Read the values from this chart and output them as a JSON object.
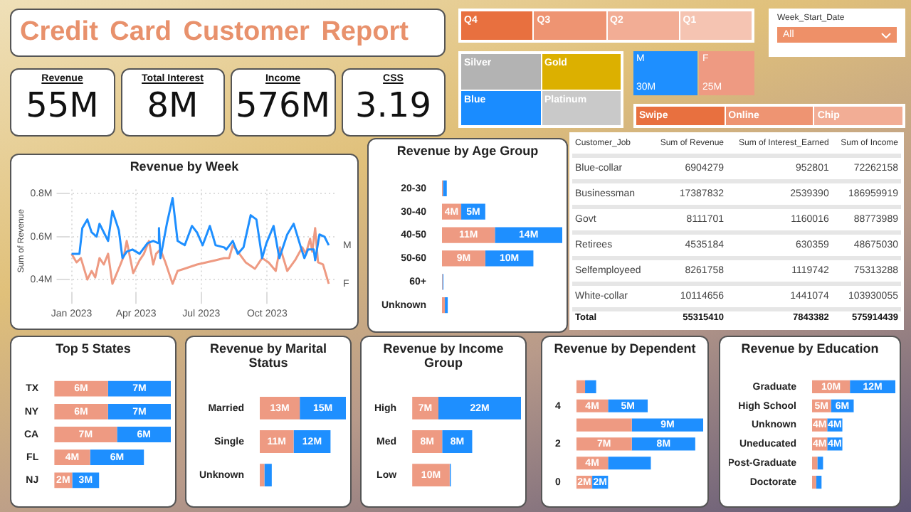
{
  "chart_data": [
    {
      "type": "other",
      "title": "Credit Card Customer Report"
    },
    {
      "type": "other",
      "categories": [
        "Q4",
        "Q3",
        "Q2",
        "Q1"
      ],
      "colors": [
        "#e8703f",
        "#ee9472",
        "#f2ad95",
        "#f5c4b2"
      ]
    },
    {
      "type": "other",
      "title": "Week_Start_Date",
      "annotations": [
        "All"
      ]
    },
    {
      "type": "other",
      "categories": [
        "Revenue",
        "Total Interest",
        "Income",
        "CSS"
      ],
      "value_labels": [
        "55M",
        "8M",
        "576M",
        "3.19"
      ]
    },
    {
      "type": "other",
      "categories": [
        "Silver",
        "Gold",
        "Blue",
        "Platinum"
      ],
      "colors": [
        "#b3b3b3",
        "#dcb000",
        "#1a8cff",
        "#c9c9c9"
      ]
    },
    {
      "type": "other",
      "categories": [
        "M",
        "F"
      ],
      "values": [
        30,
        25
      ],
      "value_labels": [
        "30M",
        "25M"
      ],
      "colors": [
        "#1e8fff",
        "#ee9a82"
      ]
    },
    {
      "type": "other",
      "categories": [
        "Swipe",
        "Online",
        "Chip"
      ],
      "colors": [
        "#e8703f",
        "#ee9472",
        "#f2ad95"
      ]
    },
    {
      "type": "line",
      "title": "Revenue by Week",
      "ylabel": "Sum of Revenue",
      "xlim": [
        "2022-12-27",
        "2024-01-05"
      ],
      "xticks": [
        {
          "value": "2023-01-01",
          "label": "Jan 2023"
        },
        {
          "value": "2023-04-01",
          "label": "Apr 2023"
        },
        {
          "value": "2023-07-01",
          "label": "Jul 2023"
        },
        {
          "value": "2023-10-01",
          "label": "Oct 2023"
        }
      ],
      "ylim": [
        0.34,
        0.82
      ],
      "yticks": [
        {
          "value": 0.4,
          "label": "0.4M"
        },
        {
          "value": 0.6,
          "label": "0.6M"
        },
        {
          "value": 0.8,
          "label": "0.8M"
        }
      ],
      "grid": true,
      "series": [
        {
          "name": "M",
          "color": "#1e8fff",
          "x": [
            "2023-01-01",
            "2023-01-12",
            "2023-01-16",
            "2023-01-23",
            "2023-01-29",
            "2023-02-05",
            "2023-02-09",
            "2023-02-15",
            "2023-02-21",
            "2023-02-27",
            "2023-03-08",
            "2023-03-13",
            "2023-03-19",
            "2023-03-27",
            "2023-04-06",
            "2023-04-17",
            "2023-04-25",
            "2023-05-02",
            "2023-05-03",
            "2023-05-05",
            "2023-05-14",
            "2023-05-22",
            "2023-05-29",
            "2023-06-08",
            "2023-06-18",
            "2023-06-25",
            "2023-07-03",
            "2023-07-13",
            "2023-07-21",
            "2023-08-02",
            "2023-08-05",
            "2023-08-14",
            "2023-08-21",
            "2023-08-29",
            "2023-09-08",
            "2023-09-16",
            "2023-09-24",
            "2023-09-30",
            "2023-10-10",
            "2023-10-18",
            "2023-10-29",
            "2023-11-07",
            "2023-11-18",
            "2023-11-22",
            "2023-11-27",
            "2023-12-05",
            "2023-12-07",
            "2023-12-13",
            "2023-12-20",
            "2023-12-26"
          ],
          "values": [
            0.52,
            0.52,
            0.64,
            0.68,
            0.62,
            0.6,
            0.66,
            0.62,
            0.58,
            0.72,
            0.63,
            0.5,
            0.53,
            0.54,
            0.52,
            0.57,
            0.58,
            0.57,
            0.64,
            0.5,
            0.66,
            0.78,
            0.58,
            0.56,
            0.65,
            0.62,
            0.56,
            0.65,
            0.56,
            0.55,
            0.54,
            0.58,
            0.52,
            0.55,
            0.7,
            0.68,
            0.5,
            0.57,
            0.65,
            0.5,
            0.61,
            0.66,
            0.54,
            0.5,
            0.54,
            0.54,
            0.49,
            0.61,
            0.6,
            0.56
          ]
        },
        {
          "name": "F",
          "color": "#ee9a82",
          "x": [
            "2023-01-01",
            "2023-01-08",
            "2023-01-14",
            "2023-01-23",
            "2023-01-29",
            "2023-02-03",
            "2023-02-09",
            "2023-02-15",
            "2023-02-21",
            "2023-02-27",
            "2023-03-09",
            "2023-03-15",
            "2023-03-19",
            "2023-03-28",
            "2023-04-06",
            "2023-04-12",
            "2023-04-19",
            "2023-04-25",
            "2023-04-29",
            "2023-05-05",
            "2023-05-12",
            "2023-05-22",
            "2023-05-29",
            "2023-06-25",
            "2023-07-21",
            "2023-08-02",
            "2023-08-09",
            "2023-08-14",
            "2023-08-21",
            "2023-09-01",
            "2023-09-14",
            "2023-09-24",
            "2023-10-03",
            "2023-10-13",
            "2023-10-19",
            "2023-10-29",
            "2023-11-09",
            "2023-11-19",
            "2023-11-24",
            "2023-11-30",
            "2023-12-03",
            "2023-12-07",
            "2023-12-11",
            "2023-12-18",
            "2023-12-26"
          ],
          "values": [
            0.52,
            0.48,
            0.5,
            0.4,
            0.44,
            0.41,
            0.5,
            0.47,
            0.52,
            0.38,
            0.46,
            0.51,
            0.58,
            0.43,
            0.49,
            0.52,
            0.58,
            0.47,
            0.52,
            0.54,
            0.48,
            0.38,
            0.44,
            0.47,
            0.49,
            0.5,
            0.5,
            0.56,
            0.53,
            0.48,
            0.45,
            0.5,
            0.48,
            0.44,
            0.55,
            0.44,
            0.49,
            0.55,
            0.52,
            0.59,
            0.53,
            0.64,
            0.48,
            0.47,
            0.38
          ]
        }
      ]
    },
    {
      "type": "bar",
      "title": "Revenue by Age Group",
      "orientation": "horizontal",
      "stacked": true,
      "categories": [
        "20-30",
        "30-40",
        "40-50",
        "50-60",
        "60+",
        "Unknown"
      ],
      "series": [
        {
          "color": "#ee9a82",
          "values": [
            0.2,
            4,
            11,
            9,
            0.1,
            0.6
          ],
          "value_labels": [
            null,
            "4M",
            "11M",
            "9M",
            null,
            null
          ]
        },
        {
          "color": "#1e8fff",
          "values": [
            0.8,
            5,
            14,
            10,
            0.2,
            0.6
          ],
          "value_labels": [
            null,
            "5M",
            "14M",
            "10M",
            null,
            null
          ]
        }
      ]
    },
    {
      "type": "other",
      "data_labels": true,
      "xlabel": "Customer_Job",
      "categories": [
        "Blue-collar",
        "Businessman",
        "Govt",
        "Retirees",
        "Selfemployeed",
        "White-collar",
        "Total"
      ],
      "series": [
        {
          "name": "Sum of Revenue",
          "values": [
            6904279,
            17387832,
            8111701,
            4535184,
            8261758,
            10114656,
            55315410
          ]
        },
        {
          "name": "Sum of Interest_Earned",
          "values": [
            952801,
            2539390,
            1160016,
            630359,
            1119742,
            1441074,
            7843382
          ]
        },
        {
          "name": "Sum of Income",
          "values": [
            72262158,
            186959919,
            88773989,
            48675030,
            75313288,
            103930055,
            575914439
          ]
        }
      ]
    },
    {
      "type": "bar",
      "title": "Top 5 States",
      "orientation": "horizontal",
      "stacked": true,
      "categories": [
        "TX",
        "NY",
        "CA",
        "FL",
        "NJ"
      ],
      "series": [
        {
          "color": "#ee9a82",
          "values": [
            6,
            6,
            7,
            4,
            2
          ],
          "value_labels": [
            "6M",
            "6M",
            "7M",
            "4M",
            "2M"
          ]
        },
        {
          "color": "#1e8fff",
          "values": [
            7,
            7,
            6,
            6,
            3
          ],
          "value_labels": [
            "7M",
            "7M",
            "6M",
            "6M",
            "3M"
          ]
        }
      ]
    },
    {
      "type": "bar",
      "title": "Revenue by Marital Status",
      "orientation": "horizontal",
      "stacked": true,
      "categories": [
        "Married",
        "Single",
        "Unknown"
      ],
      "series": [
        {
          "color": "#ee9a82",
          "values": [
            13,
            11,
            1.5
          ],
          "value_labels": [
            "13M",
            "11M",
            null
          ]
        },
        {
          "color": "#1e8fff",
          "values": [
            15,
            12,
            2.4
          ],
          "value_labels": [
            "15M",
            "12M",
            null
          ]
        }
      ]
    },
    {
      "type": "bar",
      "title": "Revenue by Income Group",
      "orientation": "horizontal",
      "stacked": true,
      "categories": [
        "High",
        "Med",
        "Low"
      ],
      "series": [
        {
          "color": "#ee9a82",
          "values": [
            7,
            8,
            10
          ],
          "value_labels": [
            "7M",
            "8M",
            "10M"
          ]
        },
        {
          "color": "#1e8fff",
          "values": [
            22,
            8,
            0.3
          ],
          "value_labels": [
            "22M",
            "8M",
            null
          ]
        }
      ]
    },
    {
      "type": "bar",
      "title": "Revenue by Dependent",
      "orientation": "horizontal",
      "stacked": true,
      "categories": [
        null,
        "4",
        null,
        "2",
        null,
        "0"
      ],
      "series": [
        {
          "color": "#ee9a82",
          "values": [
            1.1,
            4,
            7,
            7,
            4,
            2
          ],
          "value_labels": [
            null,
            "4M",
            null,
            "7M",
            "4M",
            "2M"
          ]
        },
        {
          "color": "#1e8fff",
          "values": [
            1.4,
            5,
            9,
            8,
            5.4,
            2
          ],
          "value_labels": [
            null,
            "5M",
            "9M",
            "8M",
            null,
            "2M"
          ]
        }
      ]
    },
    {
      "type": "bar",
      "title": "Revenue by Education",
      "orientation": "horizontal",
      "stacked": true,
      "categories": [
        "Graduate",
        "High School",
        "Unknown",
        "Uneducated",
        "Post-Graduate",
        "Doctorate"
      ],
      "series": [
        {
          "color": "#ee9a82",
          "values": [
            10,
            5,
            4,
            4,
            1.4,
            1.1
          ],
          "value_labels": [
            "10M",
            "5M",
            "4M",
            "4M",
            null,
            null
          ]
        },
        {
          "color": "#1e8fff",
          "values": [
            12,
            6,
            4,
            4,
            1.5,
            1.4
          ],
          "value_labels": [
            "12M",
            "6M",
            "4M",
            "4M",
            null,
            null
          ]
        }
      ]
    }
  ]
}
